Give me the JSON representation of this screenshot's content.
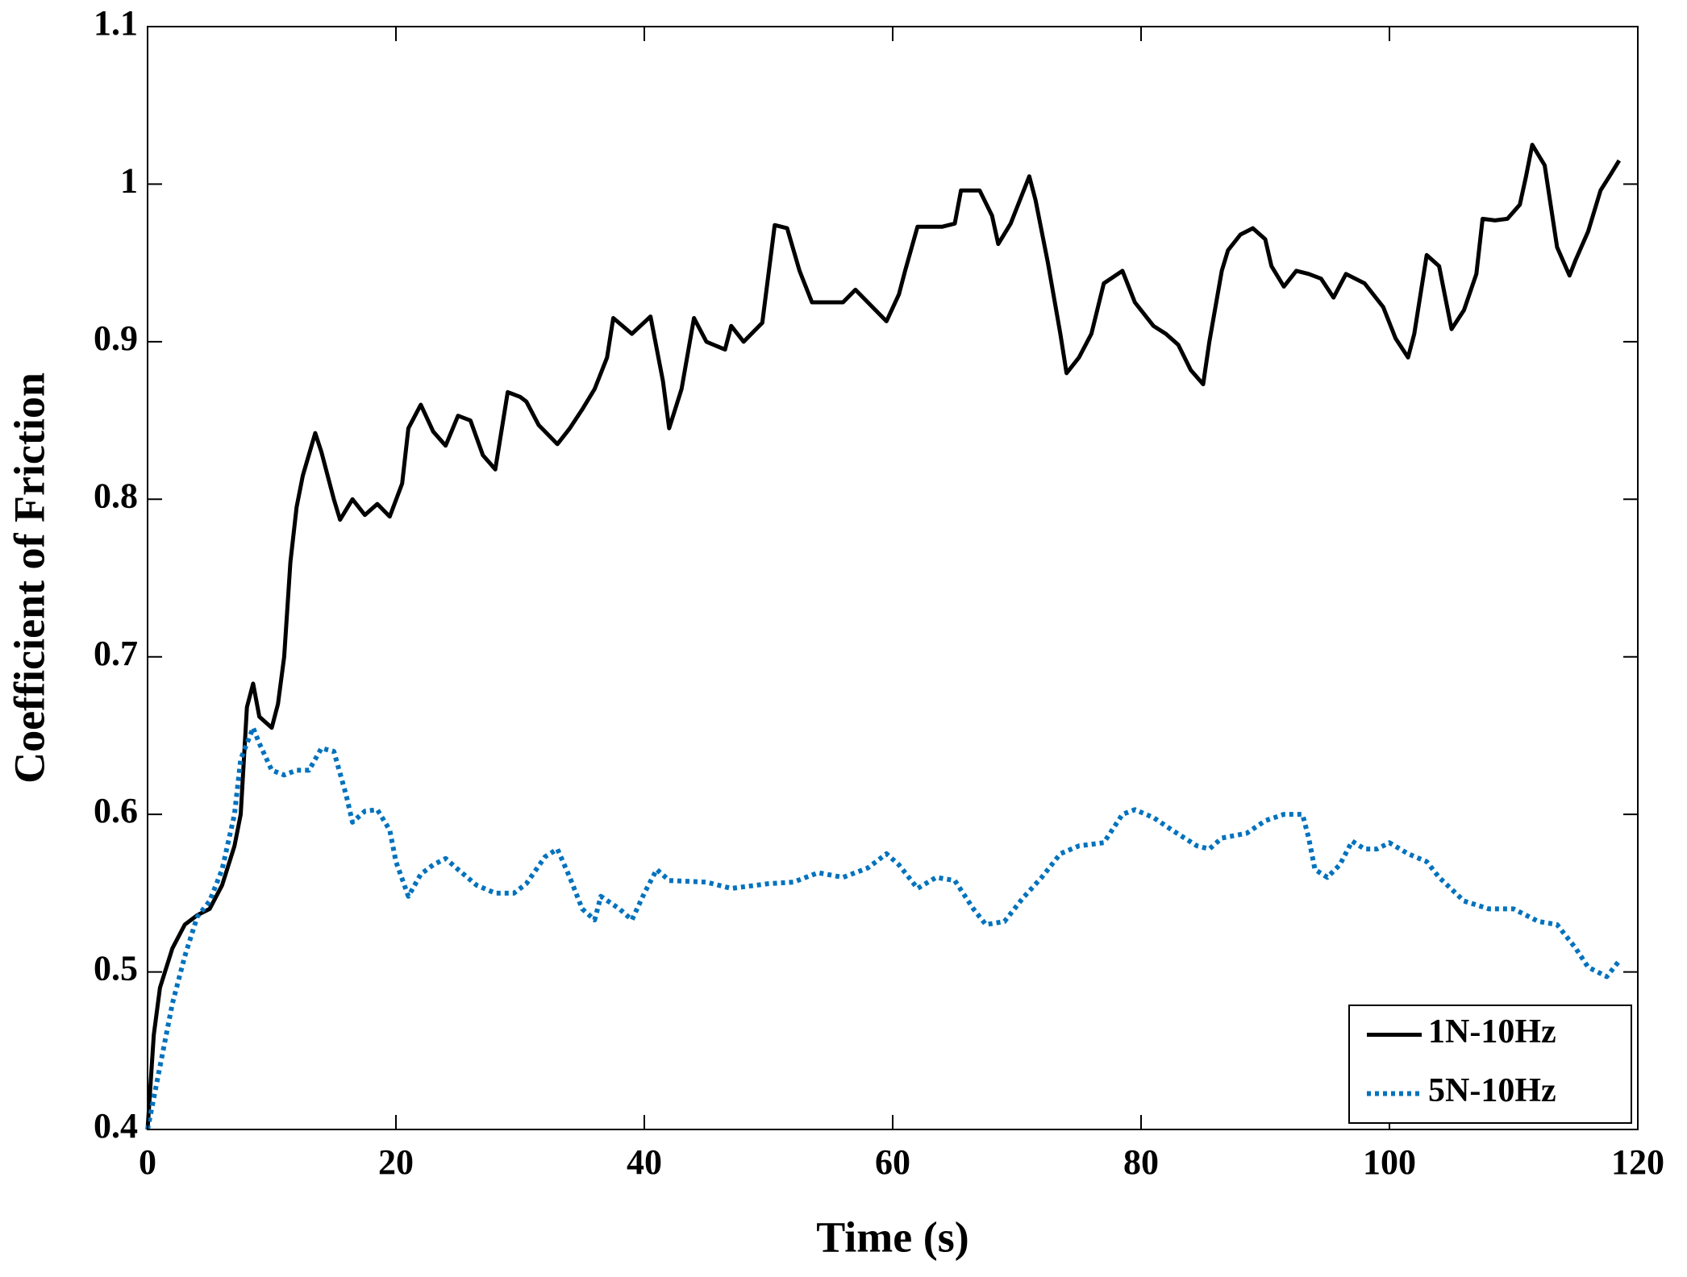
{
  "chart_data": {
    "type": "line",
    "xlabel": "Time (s)",
    "ylabel": "Coefficient of Friction",
    "xlim": [
      0,
      120
    ],
    "xticks": [
      0,
      20,
      40,
      60,
      80,
      100,
      120
    ],
    "ylim": [
      0.4,
      1.1
    ],
    "yticks": [
      0.4,
      0.5,
      0.6,
      0.7,
      0.8,
      0.9,
      1,
      1.1
    ],
    "legend": "lower right",
    "series": [
      {
        "name": "1N-10Hz",
        "color": "#000000",
        "style": "solid",
        "x": [
          0,
          0.5,
          1,
          2,
          3,
          4,
          5,
          6,
          7,
          7.5,
          8,
          8.5,
          9,
          10,
          10.5,
          11,
          11.5,
          12,
          12.5,
          13.5,
          14,
          15,
          15.5,
          16.5,
          17.5,
          18.5,
          19.5,
          20.5,
          21,
          22,
          23,
          24,
          25,
          26,
          27,
          28,
          29,
          30,
          30.5,
          31.5,
          33,
          34,
          35,
          36,
          37,
          37.5,
          39,
          40.5,
          41.5,
          42,
          43,
          44,
          45,
          46.5,
          47,
          48,
          49.5,
          50.5,
          51.5,
          52.5,
          53.5,
          56,
          57,
          59.5,
          60.5,
          61,
          62,
          64,
          65,
          65.5,
          67,
          68,
          68.5,
          69.5,
          70.5,
          71,
          71.5,
          72.5,
          73.5,
          74,
          75,
          76,
          77,
          78.5,
          79.5,
          81,
          82,
          83,
          84,
          85,
          85.5,
          86.5,
          87,
          88,
          89,
          90,
          90.5,
          91.5,
          92.5,
          93.5,
          94.5,
          95.5,
          96.5,
          98,
          99.5,
          100.5,
          101.5,
          102,
          103,
          104,
          105,
          106,
          107,
          107.5,
          108.5,
          109.5,
          110.5,
          111,
          111.5,
          112.5,
          113.5,
          114.5,
          115,
          116,
          117,
          117.8,
          118.5
        ],
        "values": [
          0.4,
          0.46,
          0.49,
          0.515,
          0.53,
          0.536,
          0.54,
          0.555,
          0.58,
          0.6,
          0.668,
          0.683,
          0.662,
          0.655,
          0.67,
          0.7,
          0.76,
          0.795,
          0.815,
          0.842,
          0.83,
          0.8,
          0.787,
          0.8,
          0.79,
          0.797,
          0.789,
          0.81,
          0.845,
          0.86,
          0.843,
          0.834,
          0.853,
          0.85,
          0.828,
          0.819,
          0.868,
          0.865,
          0.862,
          0.847,
          0.835,
          0.845,
          0.857,
          0.87,
          0.89,
          0.915,
          0.905,
          0.916,
          0.875,
          0.845,
          0.87,
          0.915,
          0.9,
          0.895,
          0.91,
          0.9,
          0.912,
          0.974,
          0.972,
          0.945,
          0.925,
          0.925,
          0.933,
          0.913,
          0.93,
          0.945,
          0.973,
          0.973,
          0.975,
          0.996,
          0.996,
          0.98,
          0.962,
          0.975,
          0.995,
          1.005,
          0.99,
          0.95,
          0.905,
          0.88,
          0.89,
          0.905,
          0.937,
          0.945,
          0.925,
          0.91,
          0.905,
          0.898,
          0.882,
          0.873,
          0.9,
          0.945,
          0.958,
          0.968,
          0.972,
          0.965,
          0.948,
          0.935,
          0.945,
          0.943,
          0.94,
          0.928,
          0.943,
          0.937,
          0.922,
          0.902,
          0.89,
          0.905,
          0.955,
          0.948,
          0.908,
          0.92,
          0.943,
          0.978,
          0.977,
          0.978,
          0.987,
          1.005,
          1.025,
          1.012,
          0.96,
          0.942,
          0.952,
          0.97,
          0.996,
          1.006,
          1.015
        ]
      },
      {
        "name": "5N-10Hz",
        "color": "#0072bd",
        "style": "dotted",
        "x": [
          0,
          1,
          2,
          3,
          4,
          5,
          6,
          7,
          7.5,
          8.5,
          9,
          10,
          11,
          12,
          13,
          14,
          15,
          16,
          16.5,
          17.5,
          18.5,
          19.5,
          20,
          21,
          22,
          23,
          24,
          25,
          26.5,
          28,
          29.5,
          30.5,
          32,
          33,
          34,
          35,
          36,
          36.5,
          38,
          39,
          40,
          41,
          42,
          45,
          47,
          50,
          52,
          54,
          56,
          58,
          59.5,
          60.5,
          62,
          63.5,
          65,
          66.5,
          67.5,
          69,
          70.5,
          72,
          73.5,
          75,
          77,
          78.5,
          79.5,
          81,
          82.5,
          84.5,
          85.5,
          86.5,
          88.5,
          90,
          91.5,
          93,
          93.5,
          94,
          95,
          96,
          97,
          98,
          99,
          100,
          101.5,
          103,
          104,
          106,
          108,
          110,
          112,
          113.5,
          115,
          116,
          117.5,
          118.5
        ],
        "values": [
          0.4,
          0.44,
          0.48,
          0.51,
          0.535,
          0.545,
          0.565,
          0.6,
          0.635,
          0.655,
          0.645,
          0.628,
          0.625,
          0.628,
          0.628,
          0.642,
          0.64,
          0.612,
          0.595,
          0.602,
          0.603,
          0.59,
          0.57,
          0.548,
          0.562,
          0.568,
          0.572,
          0.565,
          0.555,
          0.55,
          0.55,
          0.556,
          0.573,
          0.578,
          0.56,
          0.54,
          0.533,
          0.548,
          0.54,
          0.533,
          0.55,
          0.565,
          0.558,
          0.557,
          0.553,
          0.556,
          0.557,
          0.563,
          0.56,
          0.566,
          0.575,
          0.568,
          0.553,
          0.56,
          0.558,
          0.54,
          0.53,
          0.532,
          0.547,
          0.56,
          0.575,
          0.58,
          0.582,
          0.6,
          0.603,
          0.598,
          0.59,
          0.58,
          0.578,
          0.585,
          0.588,
          0.596,
          0.6,
          0.6,
          0.585,
          0.565,
          0.56,
          0.568,
          0.583,
          0.578,
          0.578,
          0.582,
          0.575,
          0.57,
          0.56,
          0.545,
          0.54,
          0.54,
          0.532,
          0.53,
          0.515,
          0.503,
          0.497,
          0.507
        ]
      }
    ]
  }
}
